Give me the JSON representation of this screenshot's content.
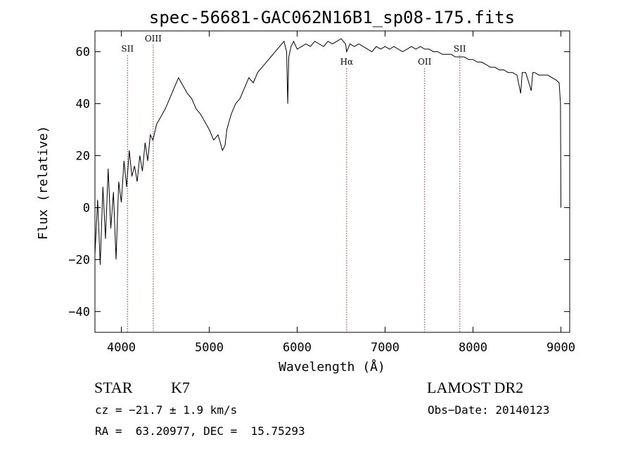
{
  "chart_data": {
    "type": "line",
    "title": "spec-56681-GAC062N16B1_sp08-175.fits",
    "xlabel": "Wavelength (Å)",
    "ylabel": "Flux (relative)",
    "xlim": [
      3700,
      9100
    ],
    "ylim": [
      -48,
      68
    ],
    "xticks": [
      4000,
      5000,
      6000,
      7000,
      8000,
      9000
    ],
    "yticks": [
      -40,
      -20,
      0,
      20,
      40,
      60
    ],
    "series": [
      {
        "x": [
          3700,
          3730,
          3760,
          3790,
          3820,
          3850,
          3880,
          3910,
          3940,
          3970,
          4000,
          4030,
          4060,
          4090,
          4120,
          4150,
          4180,
          4210,
          4240,
          4270,
          4300,
          4330,
          4360,
          4400,
          4450,
          4500,
          4550,
          4600,
          4650,
          4700,
          4750,
          4800,
          4850,
          4900,
          4950,
          5000,
          5050,
          5100,
          5150,
          5180,
          5200,
          5250,
          5300,
          5350,
          5400,
          5450,
          5500,
          5550,
          5600,
          5650,
          5700,
          5750,
          5800,
          5850,
          5880,
          5893,
          5905,
          5930,
          5960,
          6000,
          6050,
          6100,
          6150,
          6200,
          6250,
          6300,
          6350,
          6400,
          6450,
          6500,
          6550,
          6563,
          6600,
          6650,
          6700,
          6750,
          6800,
          6850,
          6900,
          6950,
          7000,
          7050,
          7100,
          7150,
          7200,
          7250,
          7300,
          7350,
          7400,
          7450,
          7500,
          7550,
          7600,
          7650,
          7700,
          7750,
          7800,
          7850,
          7900,
          7950,
          8000,
          8050,
          8100,
          8150,
          8200,
          8250,
          8300,
          8350,
          8400,
          8450,
          8500,
          8542,
          8560,
          8600,
          8662,
          8680,
          8700,
          8750,
          8800,
          8850,
          8900,
          8950,
          8980,
          8995,
          9000
        ],
        "y": [
          -18,
          3,
          -22,
          8,
          -12,
          15,
          -8,
          6,
          -20,
          10,
          2,
          18,
          8,
          22,
          12,
          16,
          10,
          20,
          14,
          25,
          18,
          28,
          26,
          32,
          35,
          38,
          42,
          46,
          50,
          47,
          44,
          42,
          38,
          36,
          33,
          30,
          26,
          28,
          22,
          24,
          30,
          36,
          40,
          42,
          46,
          50,
          48,
          52,
          54,
          56,
          58,
          60,
          62,
          64,
          60,
          40,
          58,
          62,
          64,
          61,
          62,
          63,
          62,
          64,
          63,
          62,
          64,
          63,
          64,
          65,
          63,
          60,
          63,
          62,
          63,
          62,
          61,
          60,
          62,
          61,
          62,
          61,
          62,
          61,
          60,
          61,
          62,
          61,
          62,
          61,
          61,
          60,
          60,
          59,
          59,
          59,
          58,
          58,
          58,
          57,
          57,
          56,
          56,
          55,
          54,
          54,
          53,
          53,
          52,
          52,
          51,
          44,
          52,
          52,
          45,
          52,
          52,
          51,
          51,
          51,
          50,
          49,
          48,
          40,
          0
        ]
      }
    ],
    "spectral_lines": [
      {
        "name": "SII",
        "wavelength": 4070,
        "label_flux": 60
      },
      {
        "name": "OIII",
        "wavelength": 4363,
        "label_flux": 64
      },
      {
        "name": "Hα",
        "wavelength": 6563,
        "label_flux": 55
      },
      {
        "name": "OII",
        "wavelength": 7450,
        "label_flux": 55
      },
      {
        "name": "SII",
        "wavelength": 7850,
        "label_flux": 60
      }
    ],
    "grid": false,
    "legend": "none"
  },
  "info": {
    "object_type": "STAR",
    "subclass": "K7",
    "survey": "LAMOST DR2",
    "cz": "cz = −21.7 ± 1.9 km/s",
    "obs_date": "Obs−Date: 20140123",
    "coords": "RA =  63.20977, DEC =  15.75293"
  }
}
